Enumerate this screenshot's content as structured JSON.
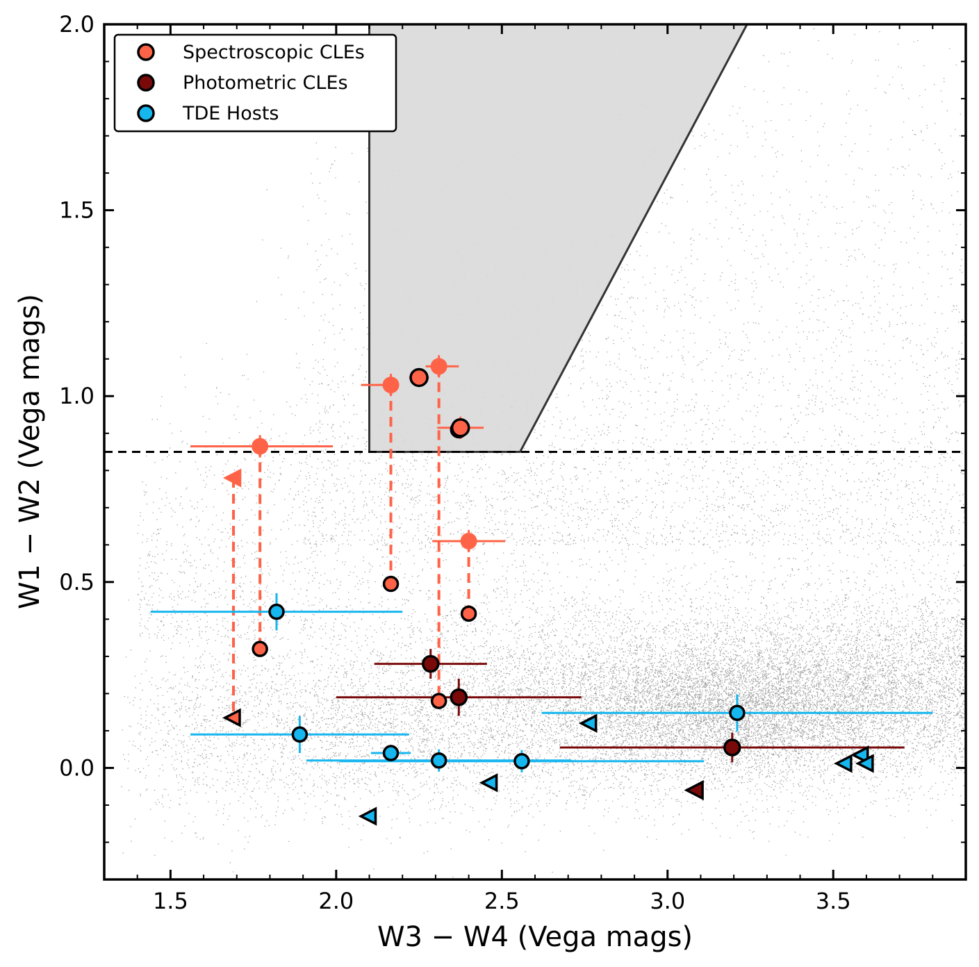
{
  "colors": {
    "spectroscopic": "#ff6347",
    "photometric": "#7a0a0a",
    "tde": "#16b6ef",
    "background_points": "#555555",
    "wedge_fill": "#d9d9d9",
    "wedge_edge": "#333333"
  },
  "chart_data": {
    "type": "scatter",
    "xlabel": "W3 − W4 (Vega mags)",
    "ylabel": "W1 − W2 (Vega mags)",
    "xlim": [
      1.3,
      3.9
    ],
    "ylim": [
      -0.3,
      2.0
    ],
    "x_ticks": [
      "1.5",
      "2.0",
      "2.5",
      "3.0",
      "3.5"
    ],
    "y_ticks": [
      "0.0",
      "0.5",
      "1.0",
      "1.5",
      "2.0"
    ],
    "x_tick_values": [
      1.5,
      2.0,
      2.5,
      3.0,
      3.5
    ],
    "y_tick_values": [
      0.0,
      0.5,
      1.0,
      1.5,
      2.0
    ],
    "legend_position": "top-left",
    "legend": [
      {
        "label": "Spectroscopic CLEs",
        "series": "spectroscopic"
      },
      {
        "label": "Photometric CLEs",
        "series": "photometric"
      },
      {
        "label": "TDE Hosts",
        "series": "tde"
      }
    ],
    "threshold_line": {
      "y": 0.85,
      "style": "dashed"
    },
    "agn_wedge": [
      [
        2.1,
        0.85
      ],
      [
        2.1,
        2.0
      ],
      [
        3.24,
        2.0
      ],
      [
        2.555,
        0.85
      ]
    ],
    "spectroscopic_pairs": [
      {
        "x": 1.77,
        "y_bright": 0.865,
        "y_faint": 0.32,
        "xerr": [
          0.21,
          0.22
        ],
        "yerr": 0.03
      },
      {
        "x": 2.165,
        "y_bright": 1.03,
        "y_faint": 0.495,
        "xerr": [
          0.09,
          0.0
        ],
        "yerr": 0.03
      },
      {
        "x": 2.31,
        "y_bright": 1.08,
        "y_faint": 0.18,
        "xerr": [
          0.04,
          0.06
        ],
        "yerr": 0.03
      },
      {
        "x": 2.4,
        "y_bright": 0.61,
        "y_faint": 0.415,
        "xerr": [
          0.11,
          0.11
        ],
        "yerr": 0.03
      },
      {
        "x": 2.25,
        "y_bright": 1.05,
        "y_faint": null,
        "xerr": [
          0.03,
          0.03
        ],
        "yerr": 0.02
      },
      {
        "x": 2.375,
        "y_bright": 0.915,
        "y_faint": null,
        "xerr": [
          0.07,
          0.07
        ],
        "yerr": 0.03
      }
    ],
    "spectroscopic_upper_limits": [
      {
        "x": 1.69,
        "y_bright": 0.78,
        "y_faint": 0.135
      }
    ],
    "photometric_points": [
      {
        "x": 2.285,
        "y": 0.28,
        "xerr": [
          0.17,
          0.17
        ],
        "yerr": 0.04
      },
      {
        "x": 2.37,
        "y": 0.19,
        "xerr": [
          0.37,
          0.37
        ],
        "yerr": 0.05
      },
      {
        "x": 3.195,
        "y": 0.055,
        "xerr": [
          0.52,
          0.52
        ],
        "yerr": 0.04
      },
      {
        "x": 2.37,
        "y": 0.91,
        "xerr": [
          0.0,
          0.0
        ],
        "yerr": 0.0
      }
    ],
    "photometric_upper_limits": [
      {
        "x": 3.085,
        "y": -0.06
      }
    ],
    "tde_points": [
      {
        "x": 1.82,
        "y": 0.42,
        "xerr": [
          0.38,
          0.38
        ],
        "yerr": 0.05
      },
      {
        "x": 1.89,
        "y": 0.09,
        "xerr": [
          0.33,
          0.33
        ],
        "yerr": 0.05
      },
      {
        "x": 2.165,
        "y": 0.04,
        "xerr": [
          0.06,
          0.06
        ],
        "yerr": 0.02
      },
      {
        "x": 2.31,
        "y": 0.02,
        "xerr": [
          0.4,
          0.4
        ],
        "yerr": 0.03
      },
      {
        "x": 2.56,
        "y": 0.018,
        "xerr": [
          0.55,
          0.55
        ],
        "yerr": 0.03
      },
      {
        "x": 3.21,
        "y": 0.148,
        "xerr": [
          0.59,
          0.59
        ],
        "yerr": 0.05
      }
    ],
    "tde_upper_limits": [
      {
        "x": 2.1,
        "y": -0.13
      },
      {
        "x": 2.465,
        "y": -0.04
      },
      {
        "x": 2.765,
        "y": 0.12
      },
      {
        "x": 3.535,
        "y": 0.012
      },
      {
        "x": 3.585,
        "y": 0.035
      },
      {
        "x": 3.6,
        "y": 0.012
      }
    ]
  }
}
